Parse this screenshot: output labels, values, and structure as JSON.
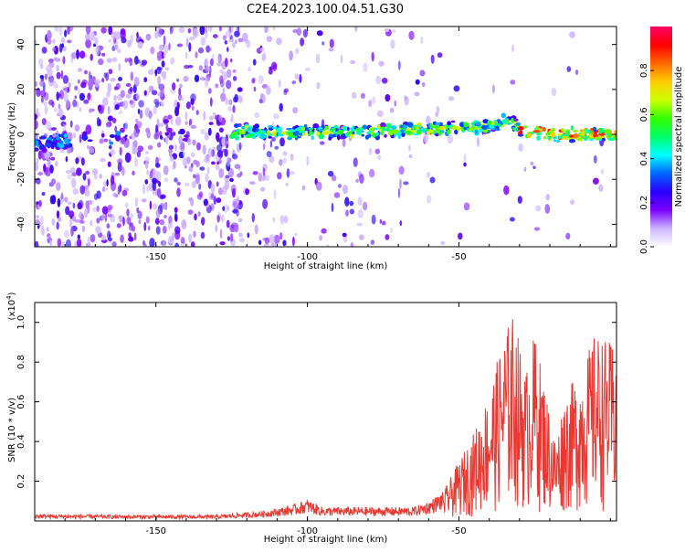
{
  "title": "C2E4.2023.100.04.51.G30",
  "chart_data": [
    {
      "type": "heatmap",
      "xlabel": "Height of straight line (km)",
      "ylabel": "Frequency (Hz)",
      "xlim": [
        -190,
        2
      ],
      "ylim": [
        -50,
        48
      ],
      "xticks": [
        -150,
        -100,
        -50
      ],
      "yticks": [
        40,
        20,
        0,
        -20,
        -40
      ],
      "colorbar": {
        "label": "Normalized spectral amplitude",
        "range": [
          0.0,
          1.0
        ],
        "ticks": [
          0.0,
          0.2,
          0.4,
          0.6,
          0.8
        ],
        "colors": [
          "#ffffff",
          "#cdb4ff",
          "#7a00ff",
          "#2a00ff",
          "#0066ff",
          "#00ffff",
          "#00ff66",
          "#33ff00",
          "#ccff00",
          "#ffcc00",
          "#ff6600",
          "#ff0000",
          "#ff0066"
        ]
      },
      "signal_track": [
        {
          "x": -190,
          "freq": -4
        },
        {
          "x": -180,
          "freq": -3
        },
        {
          "x": -125,
          "freq": 1
        },
        {
          "x": -115,
          "freq": 1
        },
        {
          "x": -100,
          "freq": 1
        },
        {
          "x": -90,
          "freq": 1
        },
        {
          "x": -80,
          "freq": 1
        },
        {
          "x": -70,
          "freq": 2
        },
        {
          "x": -60,
          "freq": 2
        },
        {
          "x": -50,
          "freq": 3
        },
        {
          "x": -40,
          "freq": 4
        },
        {
          "x": -33,
          "freq": 6
        },
        {
          "x": -30,
          "freq": 2
        },
        {
          "x": -20,
          "freq": 0
        },
        {
          "x": -10,
          "freq": 0
        },
        {
          "x": 0,
          "freq": 0
        }
      ]
    },
    {
      "type": "line",
      "xlabel": "Height of straight line (km)",
      "ylabel": "SNR (10 * v/v)",
      "y_multiplier_label": "(x10",
      "y_multiplier_exp": "4",
      "y_multiplier_close": ")",
      "xlim": [
        -190,
        2
      ],
      "ylim": [
        0,
        1.1
      ],
      "xticks": [
        -150,
        -100,
        -50
      ],
      "yticks": [
        0.2,
        0.4,
        0.6,
        0.8,
        1.0
      ],
      "series": [
        {
          "color": "#e8382f",
          "envelope": [
            {
              "x": -190,
              "y": 0.035
            },
            {
              "x": -160,
              "y": 0.03
            },
            {
              "x": -130,
              "y": 0.03
            },
            {
              "x": -115,
              "y": 0.05
            },
            {
              "x": -105,
              "y": 0.08
            },
            {
              "x": -100,
              "y": 0.11
            },
            {
              "x": -95,
              "y": 0.07
            },
            {
              "x": -85,
              "y": 0.07
            },
            {
              "x": -75,
              "y": 0.07
            },
            {
              "x": -65,
              "y": 0.07
            },
            {
              "x": -60,
              "y": 0.1
            },
            {
              "x": -55,
              "y": 0.15
            },
            {
              "x": -50,
              "y": 0.3
            },
            {
              "x": -45,
              "y": 0.45
            },
            {
              "x": -40,
              "y": 0.65
            },
            {
              "x": -35,
              "y": 0.95
            },
            {
              "x": -32,
              "y": 1.05
            },
            {
              "x": -28,
              "y": 0.75
            },
            {
              "x": -25,
              "y": 0.95
            },
            {
              "x": -20,
              "y": 0.55
            },
            {
              "x": -18,
              "y": 0.4
            },
            {
              "x": -15,
              "y": 0.65
            },
            {
              "x": -10,
              "y": 0.75
            },
            {
              "x": -5,
              "y": 0.95
            },
            {
              "x": 0,
              "y": 0.9
            }
          ]
        }
      ]
    }
  ]
}
